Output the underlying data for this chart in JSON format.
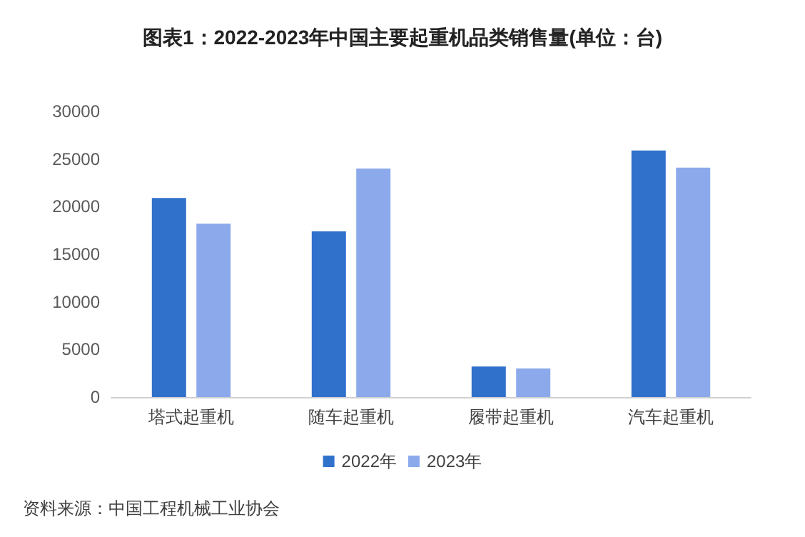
{
  "chart_data": {
    "type": "bar",
    "title": "图表1：2022-2023年中国主要起重机品类销售量(单位：台)",
    "categories": [
      "塔式起重机",
      "随车起重机",
      "履带起重机",
      "汽车起重机"
    ],
    "series": [
      {
        "name": "2022年",
        "color": "#3071cc",
        "values": [
          20900,
          17400,
          3200,
          25900
        ]
      },
      {
        "name": "2023年",
        "color": "#8caaeb",
        "values": [
          18200,
          24000,
          3000,
          24100
        ]
      }
    ],
    "ylim": [
      0,
      30000
    ],
    "yticks": [
      0,
      5000,
      10000,
      15000,
      20000,
      25000,
      30000
    ],
    "grid": false,
    "legend": "bottom",
    "annotations": [
      "资料来源：中国工程机械工业协会"
    ]
  }
}
